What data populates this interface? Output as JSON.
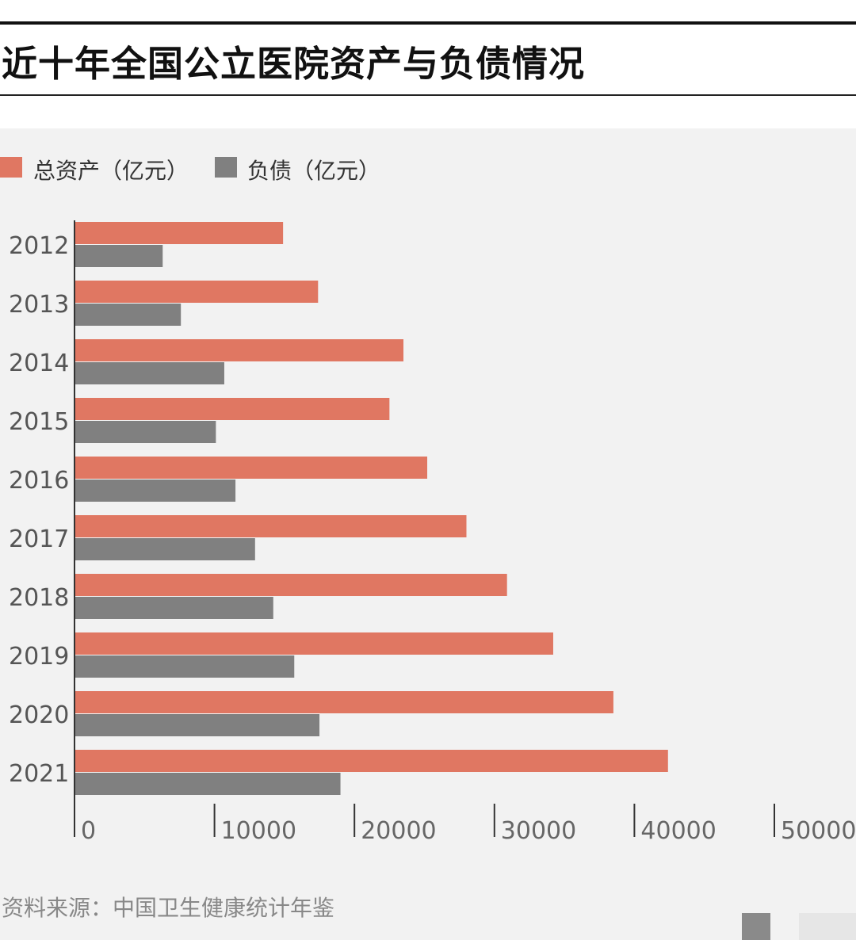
{
  "title": "近十年全国公立医院资产与负债情况",
  "legend": [
    {
      "label": "总资产（亿元）",
      "color": "#e07762"
    },
    {
      "label": "负债（亿元）",
      "color": "#808080"
    }
  ],
  "source": "资料来源：中国卫生健康统计年鉴",
  "colors": {
    "assets": "#e07762",
    "debt": "#808080",
    "panel": "#f2f2f2",
    "axis": "#333333"
  },
  "chart_data": {
    "type": "bar",
    "orientation": "horizontal",
    "title": "近十年全国公立医院资产与负债情况",
    "categories": [
      "2012",
      "2013",
      "2014",
      "2015",
      "2016",
      "2017",
      "2018",
      "2019",
      "2020",
      "2021"
    ],
    "series": [
      {
        "name": "总资产（亿元）",
        "values": [
          14900,
          17400,
          23500,
          22500,
          25200,
          28000,
          30900,
          34200,
          38500,
          42400
        ]
      },
      {
        "name": "负债（亿元）",
        "values": [
          6300,
          7600,
          10700,
          10100,
          11500,
          12900,
          14200,
          15700,
          17500,
          19000
        ]
      }
    ],
    "xlim": [
      0,
      50000
    ],
    "xticks": [
      "0",
      "10000",
      "20000",
      "30000",
      "40000",
      "50000"
    ],
    "xlabel": "",
    "ylabel": "",
    "legend_position": "top-left",
    "grid": false
  }
}
